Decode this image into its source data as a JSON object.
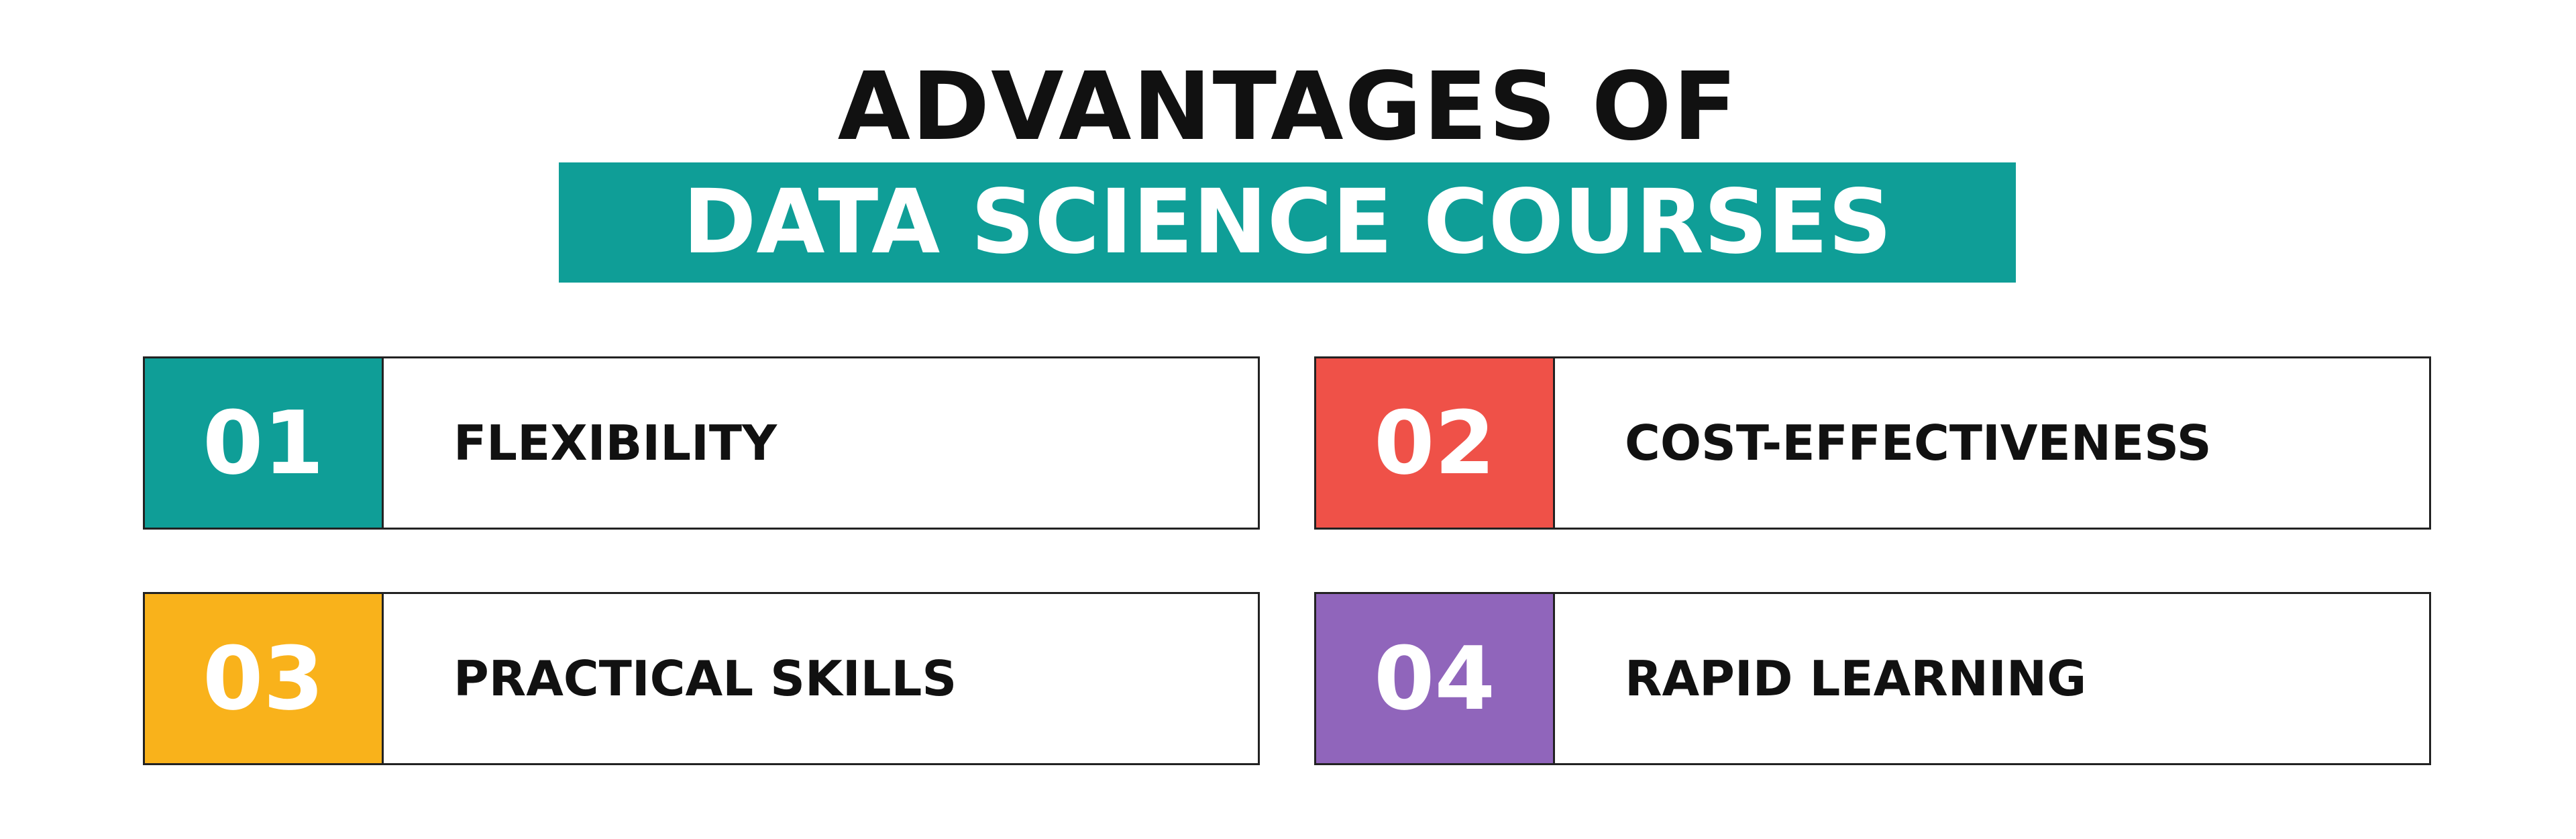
{
  "title": {
    "line1": "ADVANTAGES OF",
    "line2": "DATA SCIENCE COURSES"
  },
  "items": [
    {
      "number": "01",
      "label": "FLEXIBILITY",
      "color": "#0f9e97"
    },
    {
      "number": "02",
      "label": "COST-EFFECTIVENESS",
      "color": "#ef5148"
    },
    {
      "number": "03",
      "label": "PRACTICAL SKILLS",
      "color": "#f9b21b"
    },
    {
      "number": "04",
      "label": "RAPID LEARNING",
      "color": "#9065bb"
    }
  ]
}
